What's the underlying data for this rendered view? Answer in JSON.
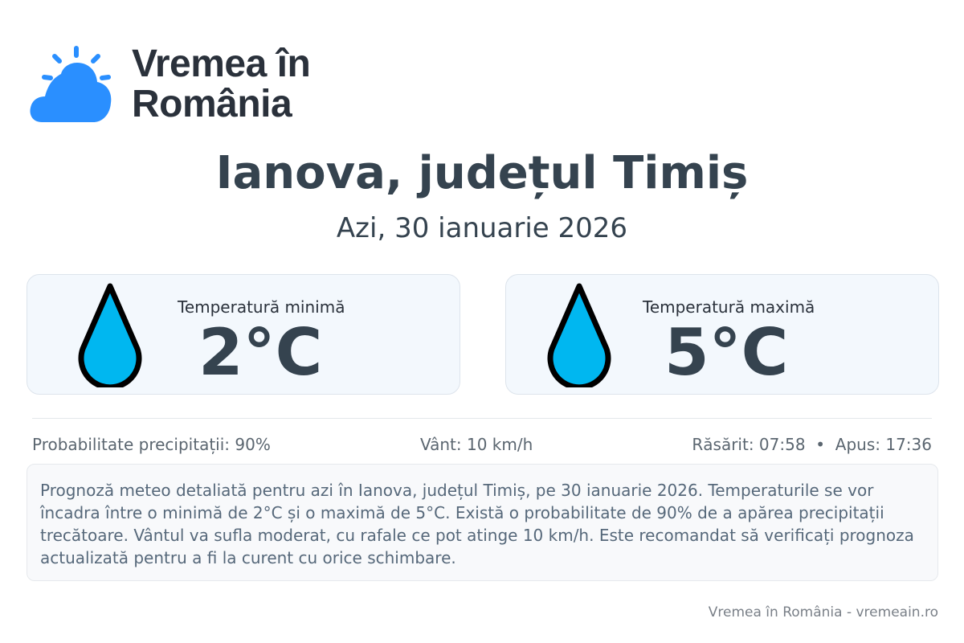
{
  "brand": {
    "name_line1": "Vremea în",
    "name_line2": "România",
    "logo_color": "#2a8fff"
  },
  "header": {
    "title": "Ianova, județul Timiș",
    "subtitle": "Azi, 30 ianuarie 2026"
  },
  "cards": [
    {
      "label": "Temperatură minimă",
      "value": "2°C",
      "icon": "water-drop-icon"
    },
    {
      "label": "Temperatură maximă",
      "value": "5°C",
      "icon": "water-drop-icon"
    }
  ],
  "stats": {
    "precip": "Probabilitate precipitații: 90%",
    "wind": "Vânt: 10 km/h",
    "sun": "Răsărit: 07:58  •  Apus: 17:36"
  },
  "description": "Prognoză meteo detaliată pentru azi în Ianova, județul Timiș, pe 30 ianuarie 2026. Temperaturile se vor încadra între o minimă de 2°C și o maximă de 5°C. Există o probabilitate de 90% de a apărea precipitații trecătoare. Vântul va sufla moderat, cu rafale ce pot atinge 10 km/h. Este recomandat să verificați prognoza actualizată pentru a fi la curent cu orice schimbare.",
  "footer": "Vremea în România - vremeain.ro",
  "colors": {
    "drop_fill": "#00b7f0",
    "text_dark": "#35434f"
  }
}
